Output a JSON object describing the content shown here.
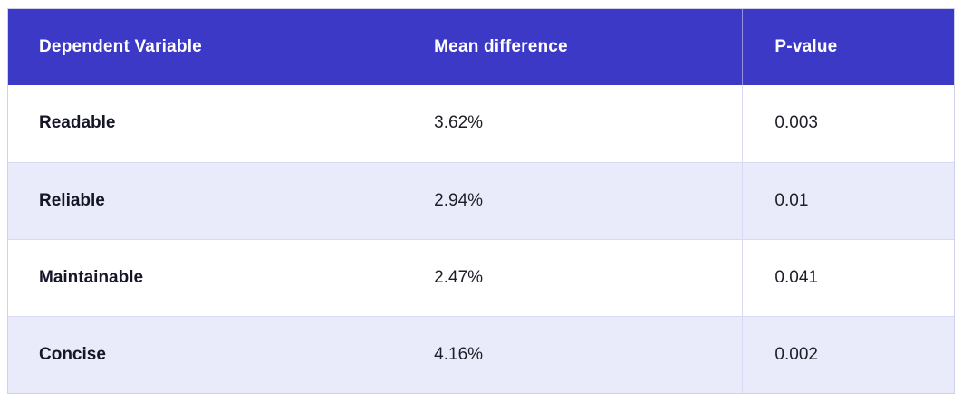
{
  "chart_data": {
    "type": "table",
    "title": "",
    "columns": [
      "Dependent Variable",
      "Mean difference",
      "P-value"
    ],
    "rows": [
      [
        "Readable",
        "3.62%",
        "0.003"
      ],
      [
        "Reliable",
        "2.94%",
        "0.01"
      ],
      [
        "Maintainable",
        "2.47%",
        "0.041"
      ],
      [
        "Concise",
        "4.16%",
        "0.002"
      ]
    ]
  },
  "colors": {
    "header_bg": "#3c39c6",
    "header_text": "#ffffff",
    "row_bg": "#ffffff",
    "row_alt_bg": "#eaebfa",
    "grid_line": "#d8daf3",
    "outer_border": "#cfd1ee",
    "variable_text": "#161629",
    "value_text": "#1e1e28"
  }
}
